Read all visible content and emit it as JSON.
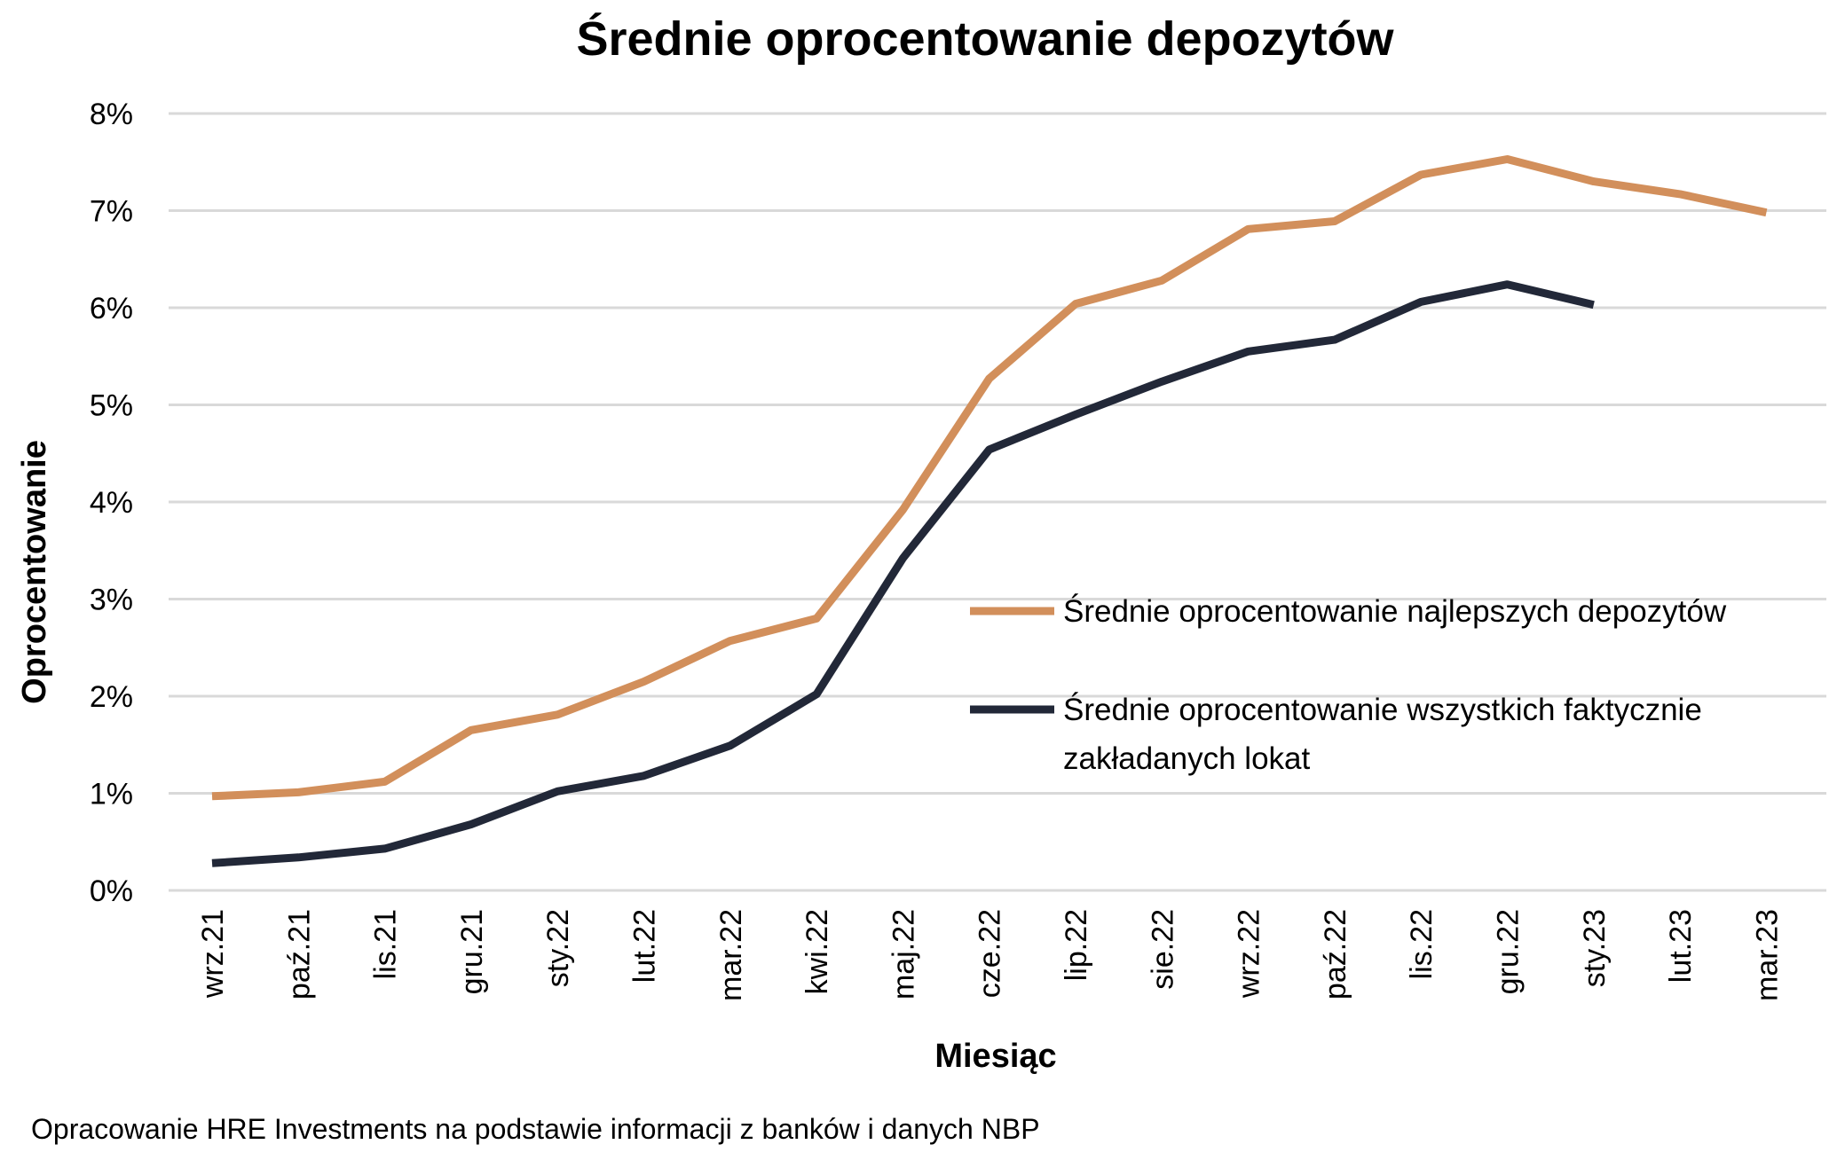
{
  "chart_data": {
    "type": "line",
    "title": "Średnie oprocentowanie depozytów",
    "xlabel": "Miesiąc",
    "ylabel": "Oprocentowanie",
    "ylim": [
      0,
      8
    ],
    "y_ticks": [
      "0%",
      "1%",
      "2%",
      "3%",
      "4%",
      "5%",
      "6%",
      "7%",
      "8%"
    ],
    "grid": true,
    "legend_position": "center-right",
    "categories": [
      "wrz.21",
      "paź.21",
      "lis.21",
      "gru.21",
      "sty.22",
      "lut.22",
      "mar.22",
      "kwi.22",
      "maj.22",
      "cze.22",
      "lip.22",
      "sie.22",
      "wrz.22",
      "paź.22",
      "lis.22",
      "gru.22",
      "sty.23",
      "lut.23",
      "mar.23"
    ],
    "series": [
      {
        "name": "Średnie oprocentowanie najlepszych depozytów",
        "legend_lines": [
          "Średnie oprocentowanie najlepszych depozytów"
        ],
        "color": "#d28f5b",
        "values": [
          0.97,
          1.01,
          1.12,
          1.65,
          1.81,
          2.15,
          2.57,
          2.8,
          3.92,
          5.27,
          6.04,
          6.28,
          6.81,
          6.89,
          7.37,
          7.53,
          7.3,
          7.17,
          6.98
        ]
      },
      {
        "name": "Średnie oprocentowanie wszystkich faktycznie zakładanych lokat",
        "legend_lines": [
          "Średnie oprocentowanie wszystkich faktycznie",
          "zakładanych lokat"
        ],
        "color": "#222838",
        "values": [
          0.28,
          0.34,
          0.43,
          0.68,
          1.02,
          1.18,
          1.49,
          2.02,
          3.42,
          4.54,
          4.9,
          5.24,
          5.55,
          5.67,
          6.06,
          6.24,
          6.03,
          null,
          null
        ]
      }
    ],
    "source_note": "Opracowanie HRE Investments na podstawie informacji z banków i danych NBP"
  }
}
